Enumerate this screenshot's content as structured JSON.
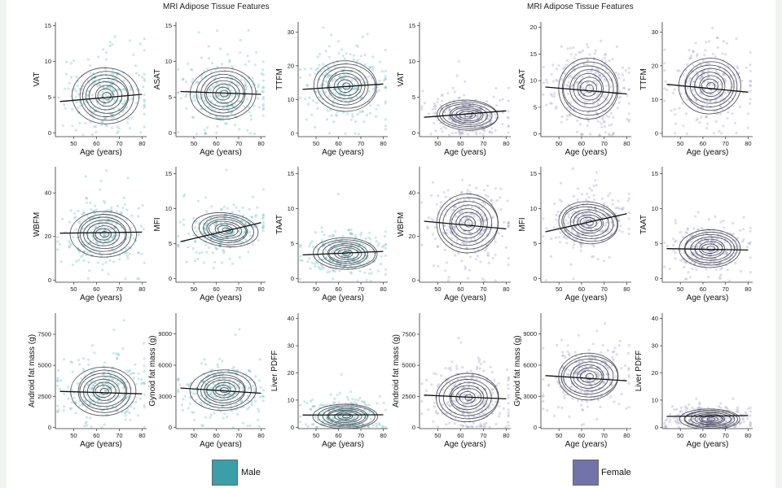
{
  "headings": {
    "left": "MRI Adipose Tissue Features",
    "right": "MRI Adipose Tissue Features"
  },
  "legend": {
    "male": {
      "label": "Male",
      "color": "#3a9fa8"
    },
    "female": {
      "label": "Female",
      "color": "#7373ab"
    }
  },
  "colors": {
    "male_points": "#68b8bd",
    "female_points": "#9898c6",
    "contour": "#2e2e3a",
    "trend": "#111111",
    "axis": "#333333"
  },
  "chart_data": [
    {
      "type": "scatter",
      "group": "Male",
      "ylabel": "VAT",
      "xlabel": "Age (years)",
      "xlim": [
        42,
        82
      ],
      "xticks": [
        50,
        60,
        70,
        80
      ],
      "ylim": [
        -0.5,
        15.5
      ],
      "yticks": [
        0,
        5,
        10,
        15
      ],
      "center": [
        64,
        5.2
      ],
      "spread": [
        9,
        2.6
      ],
      "trend": [
        [
          44,
          4.4
        ],
        [
          80,
          5.4
        ]
      ],
      "tilt": 0.15
    },
    {
      "type": "scatter",
      "group": "Male",
      "ylabel": "ASAT",
      "xlabel": "Age (years)",
      "xlim": [
        42,
        82
      ],
      "xticks": [
        50,
        60,
        70,
        80
      ],
      "ylim": [
        -0.5,
        15.5
      ],
      "yticks": [
        0,
        5,
        10,
        15
      ],
      "center": [
        63,
        5.5
      ],
      "spread": [
        9,
        2.4
      ],
      "trend": [
        [
          44,
          5.8
        ],
        [
          80,
          5.4
        ]
      ],
      "tilt": 0
    },
    {
      "type": "scatter",
      "group": "Male",
      "ylabel": "TTFM",
      "xlabel": "Age (years)",
      "xlim": [
        42,
        82
      ],
      "xticks": [
        50,
        60,
        70,
        80
      ],
      "ylim": [
        -1,
        33
      ],
      "yticks": [
        0,
        10,
        20,
        30
      ],
      "center": [
        63,
        14
      ],
      "spread": [
        9,
        5
      ],
      "trend": [
        [
          44,
          13
        ],
        [
          80,
          14.6
        ]
      ],
      "tilt": 0
    },
    {
      "type": "scatter",
      "group": "Female",
      "ylabel": "VAT",
      "xlabel": "Age (years)",
      "xlim": [
        42,
        82
      ],
      "xticks": [
        50,
        60,
        70,
        80
      ],
      "ylim": [
        -0.5,
        15.5
      ],
      "yticks": [
        0,
        5,
        10,
        15
      ],
      "center": [
        63,
        2.5
      ],
      "spread": [
        9,
        1.4
      ],
      "trend": [
        [
          44,
          2.2
        ],
        [
          80,
          3.1
        ]
      ],
      "tilt": 0
    },
    {
      "type": "scatter",
      "group": "Female",
      "ylabel": "ASAT",
      "xlabel": "Age (years)",
      "xlim": [
        42,
        82
      ],
      "xticks": [
        50,
        60,
        70,
        80
      ],
      "ylim": [
        -0.5,
        21
      ],
      "yticks": [
        0,
        5,
        10,
        15,
        20
      ],
      "center": [
        63,
        8.5
      ],
      "spread": [
        9,
        3.8
      ],
      "trend": [
        [
          44,
          8.8
        ],
        [
          80,
          7.5
        ]
      ],
      "tilt": 0
    },
    {
      "type": "scatter",
      "group": "Female",
      "ylabel": "TTFM",
      "xlabel": "Age (years)",
      "xlim": [
        42,
        82
      ],
      "xticks": [
        50,
        60,
        70,
        80
      ],
      "ylim": [
        -1,
        33
      ],
      "yticks": [
        0,
        10,
        20,
        30
      ],
      "center": [
        63,
        14
      ],
      "spread": [
        9,
        5.5
      ],
      "trend": [
        [
          44,
          14.5
        ],
        [
          80,
          12.2
        ]
      ],
      "tilt": 0
    },
    {
      "type": "scatter",
      "group": "Male",
      "ylabel": "WBFM",
      "xlabel": "Age (years)",
      "xlim": [
        42,
        82
      ],
      "xticks": [
        50,
        60,
        70,
        80
      ],
      "ylim": [
        -1,
        52
      ],
      "yticks": [
        0,
        20,
        40
      ],
      "center": [
        63,
        21
      ],
      "spread": [
        9,
        7
      ],
      "trend": [
        [
          44,
          21.5
        ],
        [
          80,
          22
        ]
      ],
      "tilt": 0
    },
    {
      "type": "scatter",
      "group": "Male",
      "ylabel": "MFI",
      "xlabel": "Age (years)",
      "xlim": [
        42,
        82
      ],
      "xticks": [
        50,
        60,
        70,
        80
      ],
      "ylim": [
        -0.5,
        16
      ],
      "yticks": [
        0,
        5,
        10,
        15
      ],
      "center": [
        64,
        7
      ],
      "spread": [
        9,
        1.6
      ],
      "trend": [
        [
          44,
          5.3
        ],
        [
          80,
          8
        ]
      ],
      "tilt": 0.7
    },
    {
      "type": "scatter",
      "group": "Male",
      "ylabel": "TAAT",
      "xlabel": "Age (years)",
      "xlim": [
        42,
        82
      ],
      "xticks": [
        50,
        60,
        70,
        80
      ],
      "ylim": [
        -0.5,
        16
      ],
      "yticks": [
        0,
        5,
        10,
        15
      ],
      "center": [
        63,
        3.6
      ],
      "spread": [
        9,
        1.5
      ],
      "trend": [
        [
          44,
          3.4
        ],
        [
          80,
          3.9
        ]
      ],
      "tilt": 0
    },
    {
      "type": "scatter",
      "group": "Female",
      "ylabel": "WBFM",
      "xlabel": "Age (years)",
      "xlim": [
        42,
        82
      ],
      "xticks": [
        50,
        60,
        70,
        80
      ],
      "ylim": [
        -1,
        52
      ],
      "yticks": [
        0,
        20,
        40
      ],
      "center": [
        63,
        26
      ],
      "spread": [
        9,
        9
      ],
      "trend": [
        [
          44,
          27
        ],
        [
          80,
          23.5
        ]
      ],
      "tilt": 0
    },
    {
      "type": "scatter",
      "group": "Female",
      "ylabel": "MFI",
      "xlabel": "Age (years)",
      "xlim": [
        42,
        82
      ],
      "xticks": [
        50,
        60,
        70,
        80
      ],
      "ylim": [
        -0.5,
        16
      ],
      "yticks": [
        0,
        5,
        10,
        15
      ],
      "center": [
        63,
        8
      ],
      "spread": [
        9,
        2
      ],
      "trend": [
        [
          44,
          6.7
        ],
        [
          80,
          9.3
        ]
      ],
      "tilt": 0.6
    },
    {
      "type": "scatter",
      "group": "Female",
      "ylabel": "TAAT",
      "xlabel": "Age (years)",
      "xlim": [
        42,
        82
      ],
      "xticks": [
        50,
        60,
        70,
        80
      ],
      "ylim": [
        -0.5,
        16
      ],
      "yticks": [
        0,
        5,
        10,
        15
      ],
      "center": [
        63,
        4.3
      ],
      "spread": [
        9,
        1.8
      ],
      "trend": [
        [
          44,
          4.3
        ],
        [
          80,
          4.1
        ]
      ],
      "tilt": 0
    },
    {
      "type": "scatter",
      "group": "Male",
      "ylabel": "Android fat mass (g)",
      "xlabel": "Age (years)",
      "xlim": [
        42,
        82
      ],
      "xticks": [
        50,
        60,
        70,
        80
      ],
      "ylim": [
        -100,
        9200
      ],
      "yticks": [
        0,
        2500,
        5000,
        7500
      ],
      "center": [
        63,
        2900
      ],
      "spread": [
        9,
        1300
      ],
      "trend": [
        [
          44,
          2900
        ],
        [
          80,
          2700
        ]
      ],
      "tilt": 0
    },
    {
      "type": "scatter",
      "group": "Male",
      "ylabel": "Gynoid fat mass (g)",
      "xlabel": "Age (years)",
      "xlim": [
        42,
        82
      ],
      "xticks": [
        50,
        60,
        70,
        80
      ],
      "ylim": [
        -100,
        11000
      ],
      "yticks": [
        0,
        3000,
        6000,
        9000
      ],
      "center": [
        63,
        3600
      ],
      "spread": [
        9,
        1300
      ],
      "trend": [
        [
          44,
          3800
        ],
        [
          80,
          3300
        ]
      ],
      "tilt": 0
    },
    {
      "type": "scatter",
      "group": "Male",
      "ylabel": "Liver PDFF",
      "xlabel": "Age (years)",
      "xlim": [
        42,
        82
      ],
      "xticks": [
        50,
        60,
        70,
        80
      ],
      "ylim": [
        -0.5,
        42
      ],
      "yticks": [
        0,
        10,
        20,
        30,
        40
      ],
      "center": [
        63,
        4
      ],
      "spread": [
        9,
        3
      ],
      "trend": [
        [
          44,
          4.5
        ],
        [
          80,
          4.6
        ]
      ],
      "tilt": 0
    },
    {
      "type": "scatter",
      "group": "Female",
      "ylabel": "Android fat mass (g)",
      "xlabel": "Age (years)",
      "xlim": [
        42,
        82
      ],
      "xticks": [
        50,
        60,
        70,
        80
      ],
      "ylim": [
        -100,
        9200
      ],
      "yticks": [
        0,
        2500,
        5000,
        7500
      ],
      "center": [
        63,
        2400
      ],
      "spread": [
        9,
        1300
      ],
      "trend": [
        [
          44,
          2600
        ],
        [
          80,
          2300
        ]
      ],
      "tilt": 0
    },
    {
      "type": "scatter",
      "group": "Female",
      "ylabel": "Gynoid fat mass (g)",
      "xlabel": "Age (years)",
      "xlim": [
        42,
        82
      ],
      "xticks": [
        50,
        60,
        70,
        80
      ],
      "ylim": [
        -100,
        11000
      ],
      "yticks": [
        0,
        3000,
        6000,
        9000
      ],
      "center": [
        63,
        4900
      ],
      "spread": [
        9,
        1500
      ],
      "trend": [
        [
          44,
          5000
        ],
        [
          80,
          4500
        ]
      ],
      "tilt": 0
    },
    {
      "type": "scatter",
      "group": "Female",
      "ylabel": "Liver PDFF",
      "xlabel": "Age (years)",
      "xlim": [
        42,
        82
      ],
      "xticks": [
        50,
        60,
        70,
        80
      ],
      "ylim": [
        -0.5,
        42
      ],
      "yticks": [
        0,
        10,
        20,
        30,
        40
      ],
      "center": [
        63,
        3
      ],
      "spread": [
        9,
        2.5
      ],
      "trend": [
        [
          44,
          4
        ],
        [
          80,
          4.3
        ]
      ],
      "tilt": 0
    }
  ]
}
